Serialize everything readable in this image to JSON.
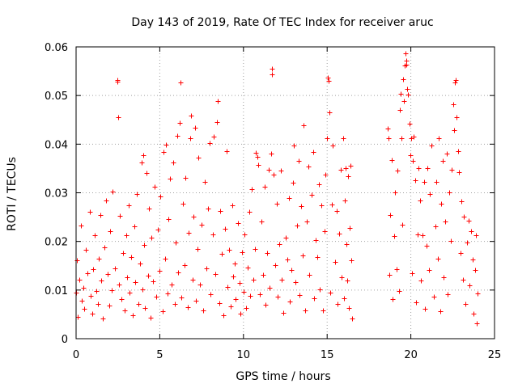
{
  "chart_data": {
    "type": "scatter",
    "title": "Day 143 of 2019, Rate Of TEC Index for receiver aruc",
    "xlabel": "GPS time / hours",
    "ylabel": "ROTI / TECUs",
    "xlim": [
      0,
      25
    ],
    "ylim": [
      0,
      0.06
    ],
    "x_ticks": [
      "0",
      "5",
      "10",
      "15",
      "20",
      "25"
    ],
    "y_ticks": [
      "0",
      "0.01",
      "0.02",
      "0.03",
      "0.04",
      "0.05",
      "0.06"
    ],
    "x_tick_values": [
      0,
      5,
      10,
      15,
      20,
      25
    ],
    "y_tick_values": [
      0,
      0.01,
      0.02,
      0.03,
      0.04,
      0.05,
      0.06
    ],
    "grid": true,
    "marker": "plus",
    "color": "#ff0000",
    "data_gap_hours": [
      16.5,
      18.6
    ],
    "series": [
      {
        "points": [
          [
            0.0,
            0.0095
          ],
          [
            0.05,
            0.0162
          ],
          [
            0.1,
            0.0045
          ],
          [
            0.2,
            0.0121
          ],
          [
            0.3,
            0.0232
          ],
          [
            0.35,
            0.0078
          ],
          [
            0.45,
            0.0105
          ],
          [
            0.5,
            0.0061
          ],
          [
            0.6,
            0.0182
          ],
          [
            0.7,
            0.0134
          ],
          [
            0.8,
            0.0261
          ],
          [
            0.85,
            0.0088
          ],
          [
            0.95,
            0.0052
          ],
          [
            1.0,
            0.0143
          ],
          [
            1.1,
            0.0212
          ],
          [
            1.2,
            0.0098
          ],
          [
            1.3,
            0.0071
          ],
          [
            1.35,
            0.0165
          ],
          [
            1.45,
            0.0254
          ],
          [
            1.5,
            0.0119
          ],
          [
            1.6,
            0.0042
          ],
          [
            1.7,
            0.0187
          ],
          [
            1.8,
            0.0285
          ],
          [
            1.9,
            0.0133
          ],
          [
            2.0,
            0.0068
          ],
          [
            2.05,
            0.0221
          ],
          [
            2.15,
            0.0099
          ],
          [
            2.2,
            0.0302
          ],
          [
            2.3,
            0.0145
          ],
          [
            2.45,
            0.0528
          ],
          [
            2.45,
            0.0532
          ],
          [
            2.5,
            0.0455
          ],
          [
            2.55,
            0.0112
          ],
          [
            2.6,
            0.0253
          ],
          [
            2.7,
            0.0081
          ],
          [
            2.8,
            0.0176
          ],
          [
            2.9,
            0.0058
          ],
          [
            3.0,
            0.0213
          ],
          [
            3.05,
            0.0127
          ],
          [
            3.15,
            0.0274
          ],
          [
            3.2,
            0.0095
          ],
          [
            3.3,
            0.0168
          ],
          [
            3.4,
            0.0049
          ],
          [
            3.5,
            0.0231
          ],
          [
            3.55,
            0.0117
          ],
          [
            3.65,
            0.0298
          ],
          [
            3.7,
            0.0072
          ],
          [
            3.8,
            0.0154
          ],
          [
            3.9,
            0.0362
          ],
          [
            3.95,
            0.0101
          ],
          [
            4.0,
            0.0378
          ],
          [
            4.05,
            0.0192
          ],
          [
            4.1,
            0.0063
          ],
          [
            4.2,
            0.0341
          ],
          [
            4.3,
            0.0129
          ],
          [
            4.35,
            0.0268
          ],
          [
            4.45,
            0.0044
          ],
          [
            4.5,
            0.0207
          ],
          [
            4.6,
            0.0118
          ],
          [
            4.7,
            0.0312
          ],
          [
            4.8,
            0.0086
          ],
          [
            4.9,
            0.0225
          ],
          [
            5.0,
            0.0139
          ],
          [
            5.05,
            0.0292
          ],
          [
            5.15,
            0.0057
          ],
          [
            5.2,
            0.0384
          ],
          [
            5.3,
            0.0164
          ],
          [
            5.35,
            0.0399
          ],
          [
            5.45,
            0.0093
          ],
          [
            5.5,
            0.0246
          ],
          [
            5.6,
            0.0329
          ],
          [
            5.7,
            0.0112
          ],
          [
            5.8,
            0.0362
          ],
          [
            5.9,
            0.0071
          ],
          [
            5.95,
            0.0198
          ],
          [
            6.05,
            0.0418
          ],
          [
            6.1,
            0.0136
          ],
          [
            6.2,
            0.0443
          ],
          [
            6.25,
            0.0527
          ],
          [
            6.3,
            0.0085
          ],
          [
            6.4,
            0.0278
          ],
          [
            6.5,
            0.0152
          ],
          [
            6.55,
            0.0331
          ],
          [
            6.65,
            0.0064
          ],
          [
            6.7,
            0.0217
          ],
          [
            6.8,
            0.0413
          ],
          [
            6.85,
            0.0458
          ],
          [
            6.95,
            0.0122
          ],
          [
            7.0,
            0.0251
          ],
          [
            7.1,
            0.0434
          ],
          [
            7.15,
            0.0078
          ],
          [
            7.25,
            0.0185
          ],
          [
            7.3,
            0.0372
          ],
          [
            7.4,
            0.0112
          ],
          [
            7.5,
            0.0235
          ],
          [
            7.6,
            0.0058
          ],
          [
            7.7,
            0.0322
          ],
          [
            7.8,
            0.0144
          ],
          [
            7.9,
            0.0268
          ],
          [
            8.0,
            0.0402
          ],
          [
            8.05,
            0.0091
          ],
          [
            8.15,
            0.0214
          ],
          [
            8.2,
            0.0416
          ],
          [
            8.3,
            0.0133
          ],
          [
            8.4,
            0.0446
          ],
          [
            8.45,
            0.0488
          ],
          [
            8.55,
            0.0073
          ],
          [
            8.6,
            0.0263
          ],
          [
            8.7,
            0.0175
          ],
          [
            8.8,
            0.0048
          ],
          [
            8.9,
            0.0226
          ],
          [
            9.0,
            0.0386
          ],
          [
            9.05,
            0.0107
          ],
          [
            9.15,
            0.0182
          ],
          [
            9.25,
            0.0066
          ],
          [
            9.35,
            0.0274
          ],
          [
            9.4,
            0.0128
          ],
          [
            9.5,
            0.0154
          ],
          [
            9.55,
            0.0082
          ],
          [
            9.65,
            0.0238
          ],
          [
            9.75,
            0.0114
          ],
          [
            9.8,
            0.0052
          ],
          [
            9.9,
            0.0178
          ],
          [
            10.0,
            0.0097
          ],
          [
            10.05,
            0.0215
          ],
          [
            10.15,
            0.0063
          ],
          [
            10.25,
            0.0146
          ],
          [
            10.35,
            0.0261
          ],
          [
            10.4,
            0.0088
          ],
          [
            10.5,
            0.0307
          ],
          [
            10.6,
            0.0122
          ],
          [
            10.7,
            0.0185
          ],
          [
            10.75,
            0.0382
          ],
          [
            10.85,
            0.0374
          ],
          [
            10.9,
            0.0357
          ],
          [
            11.0,
            0.0092
          ],
          [
            11.05,
            0.0241
          ],
          [
            11.15,
            0.0131
          ],
          [
            11.25,
            0.0312
          ],
          [
            11.3,
            0.0069
          ],
          [
            11.4,
            0.0176
          ],
          [
            11.5,
            0.0348
          ],
          [
            11.55,
            0.0104
          ],
          [
            11.65,
            0.0381
          ],
          [
            11.7,
            0.0555
          ],
          [
            11.72,
            0.0543
          ],
          [
            11.8,
            0.0337
          ],
          [
            11.9,
            0.0152
          ],
          [
            12.0,
            0.0277
          ],
          [
            12.05,
            0.0086
          ],
          [
            12.15,
            0.0194
          ],
          [
            12.25,
            0.0346
          ],
          [
            12.3,
            0.0121
          ],
          [
            12.4,
            0.0054
          ],
          [
            12.5,
            0.0208
          ],
          [
            12.6,
            0.0163
          ],
          [
            12.7,
            0.0289
          ],
          [
            12.75,
            0.0077
          ],
          [
            12.85,
            0.0141
          ],
          [
            12.95,
            0.0321
          ],
          [
            13.0,
            0.0398
          ],
          [
            13.1,
            0.0116
          ],
          [
            13.2,
            0.0233
          ],
          [
            13.3,
            0.0365
          ],
          [
            13.35,
            0.0089
          ],
          [
            13.45,
            0.0272
          ],
          [
            13.55,
            0.0172
          ],
          [
            13.6,
            0.0439
          ],
          [
            13.7,
            0.0059
          ],
          [
            13.8,
            0.0241
          ],
          [
            13.9,
            0.0354
          ],
          [
            13.95,
            0.0131
          ],
          [
            14.05,
            0.0296
          ],
          [
            14.15,
            0.0384
          ],
          [
            14.2,
            0.0083
          ],
          [
            14.3,
            0.0202
          ],
          [
            14.4,
            0.0168
          ],
          [
            14.5,
            0.0317
          ],
          [
            14.55,
            0.0102
          ],
          [
            14.65,
            0.0274
          ],
          [
            14.75,
            0.0059
          ],
          [
            14.85,
            0.0221
          ],
          [
            14.9,
            0.0338
          ],
          [
            15.0,
            0.0412
          ],
          [
            15.05,
            0.0537
          ],
          [
            15.1,
            0.0531
          ],
          [
            15.15,
            0.0465
          ],
          [
            15.2,
            0.0094
          ],
          [
            15.3,
            0.0276
          ],
          [
            15.35,
            0.0398
          ],
          [
            15.45,
            0.0158
          ],
          [
            15.55,
            0.0262
          ],
          [
            15.6,
            0.0071
          ],
          [
            15.7,
            0.0216
          ],
          [
            15.8,
            0.0347
          ],
          [
            15.85,
            0.0127
          ],
          [
            15.95,
            0.0412
          ],
          [
            16.0,
            0.0083
          ],
          [
            16.05,
            0.0284
          ],
          [
            16.1,
            0.0351
          ],
          [
            16.15,
            0.0194
          ],
          [
            16.2,
            0.0119
          ],
          [
            16.25,
            0.0334
          ],
          [
            16.3,
            0.0063
          ],
          [
            16.35,
            0.0228
          ],
          [
            16.4,
            0.0356
          ],
          [
            16.45,
            0.0162
          ],
          [
            16.5,
            0.0042
          ],
          [
            18.6,
            0.0432
          ],
          [
            18.65,
            0.0412
          ],
          [
            18.7,
            0.0131
          ],
          [
            18.75,
            0.0254
          ],
          [
            18.85,
            0.0367
          ],
          [
            18.9,
            0.0082
          ],
          [
            19.0,
            0.0211
          ],
          [
            19.05,
            0.0301
          ],
          [
            19.15,
            0.0143
          ],
          [
            19.2,
            0.0346
          ],
          [
            19.3,
            0.0098
          ],
          [
            19.35,
            0.0471
          ],
          [
            19.4,
            0.0503
          ],
          [
            19.45,
            0.0412
          ],
          [
            19.5,
            0.0234
          ],
          [
            19.55,
            0.0534
          ],
          [
            19.6,
            0.0489
          ],
          [
            19.65,
            0.0562
          ],
          [
            19.7,
            0.0586
          ],
          [
            19.72,
            0.0571
          ],
          [
            19.75,
            0.0563
          ],
          [
            19.8,
            0.0513
          ],
          [
            19.85,
            0.0502
          ],
          [
            19.9,
            0.0442
          ],
          [
            19.95,
            0.0378
          ],
          [
            20.0,
            0.0412
          ],
          [
            20.05,
            0.0135
          ],
          [
            20.1,
            0.0366
          ],
          [
            20.15,
            0.0415
          ],
          [
            20.25,
            0.0326
          ],
          [
            20.3,
            0.0074
          ],
          [
            20.4,
            0.0214
          ],
          [
            20.45,
            0.0351
          ],
          [
            20.55,
            0.0284
          ],
          [
            20.6,
            0.0119
          ],
          [
            20.7,
            0.0212
          ],
          [
            20.8,
            0.0322
          ],
          [
            20.85,
            0.0062
          ],
          [
            20.95,
            0.0191
          ],
          [
            21.0,
            0.0351
          ],
          [
            21.1,
            0.0141
          ],
          [
            21.15,
            0.0298
          ],
          [
            21.25,
            0.0397
          ],
          [
            21.35,
            0.0087
          ],
          [
            21.45,
            0.0231
          ],
          [
            21.5,
            0.0322
          ],
          [
            21.6,
            0.0164
          ],
          [
            21.65,
            0.0412
          ],
          [
            21.75,
            0.0056
          ],
          [
            21.8,
            0.0278
          ],
          [
            21.9,
            0.0365
          ],
          [
            21.95,
            0.0126
          ],
          [
            22.05,
            0.0241
          ],
          [
            22.15,
            0.0381
          ],
          [
            22.2,
            0.0092
          ],
          [
            22.3,
            0.0301
          ],
          [
            22.4,
            0.0201
          ],
          [
            22.45,
            0.0347
          ],
          [
            22.55,
            0.0482
          ],
          [
            22.6,
            0.0428
          ],
          [
            22.65,
            0.0527
          ],
          [
            22.7,
            0.0532
          ],
          [
            22.75,
            0.0456
          ],
          [
            22.8,
            0.0386
          ],
          [
            22.85,
            0.0342
          ],
          [
            22.95,
            0.0176
          ],
          [
            23.0,
            0.0282
          ],
          [
            23.1,
            0.0121
          ],
          [
            23.15,
            0.0251
          ],
          [
            23.25,
            0.0072
          ],
          [
            23.35,
            0.0198
          ],
          [
            23.45,
            0.0243
          ],
          [
            23.5,
            0.0109
          ],
          [
            23.6,
            0.0221
          ],
          [
            23.7,
            0.0163
          ],
          [
            23.75,
            0.0052
          ],
          [
            23.85,
            0.0141
          ],
          [
            23.9,
            0.0212
          ],
          [
            23.95,
            0.0031
          ],
          [
            24.0,
            0.0093
          ]
        ]
      }
    ]
  }
}
